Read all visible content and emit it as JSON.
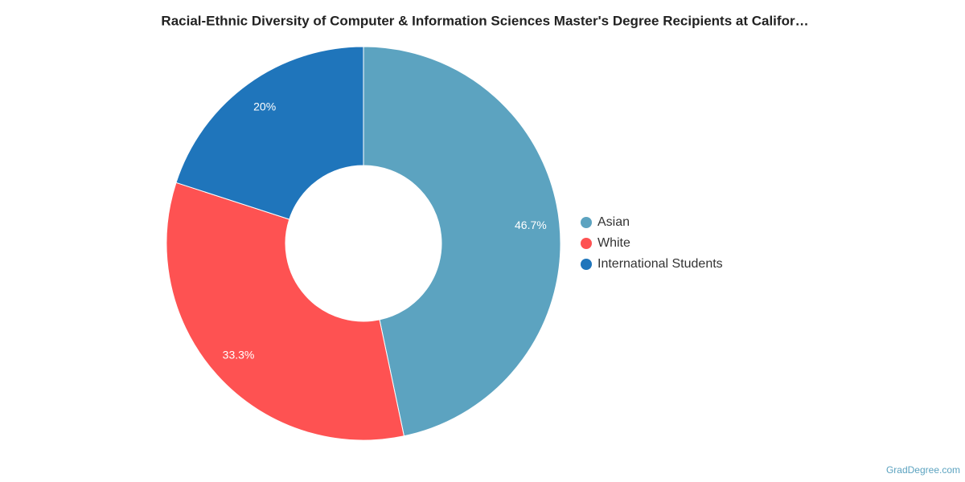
{
  "chart_data": {
    "type": "donut",
    "title": "Racial-Ethnic Diversity of Computer & Information Sciences Master's Degree Recipients at Califor…",
    "categories": [
      "Asian",
      "White",
      "International Students"
    ],
    "values": [
      46.7,
      33.3,
      20
    ],
    "value_labels": [
      "46.7%",
      "33.3%",
      "20%"
    ],
    "colors": [
      "#5ca3c0",
      "#fe5252",
      "#1f75bb"
    ],
    "legend": "right",
    "credit": "GradDegree.com"
  }
}
